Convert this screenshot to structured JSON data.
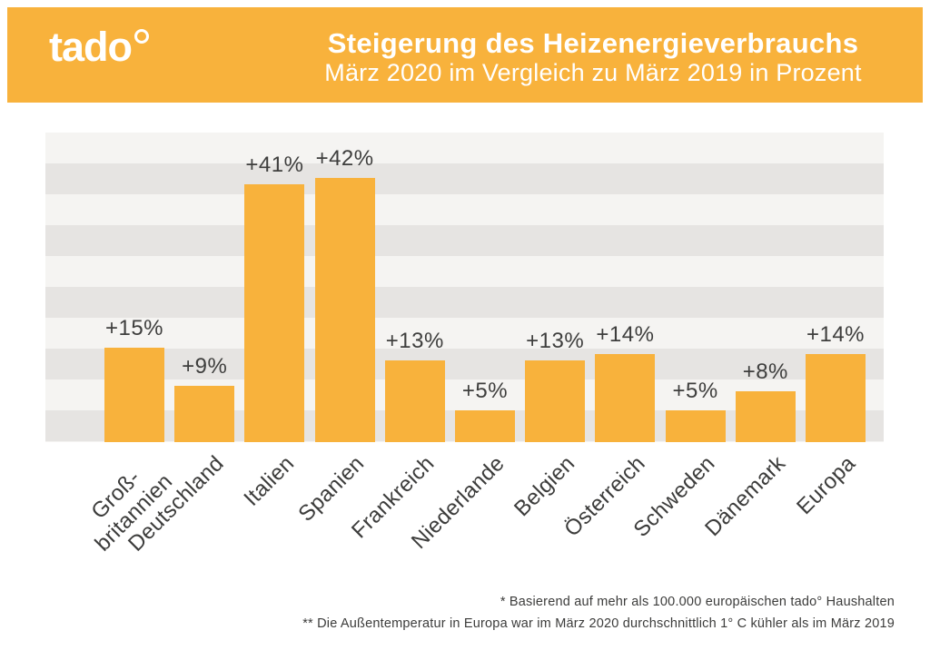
{
  "header": {
    "logo_text": "tado",
    "logo_degree": "°",
    "title": "Steigerung des Heizenergieverbrauchs",
    "subtitle": "März 2020 im Vergleich zu März 2019 in Prozent",
    "background_color": "#F8B23C",
    "text_color": "#FFFFFF"
  },
  "chart_data": {
    "type": "bar",
    "title": "Steigerung des Heizenergieverbrauchs",
    "subtitle": "März 2020 im Vergleich zu März 2019 in Prozent",
    "categories": [
      "Groß-\nbritannien",
      "Deutschland",
      "Italien",
      "Spanien",
      "Frankreich",
      "Niederlande",
      "Belgien",
      "Österreich",
      "Schweden",
      "Dänemark",
      "Europa"
    ],
    "values": [
      15,
      9,
      41,
      42,
      13,
      5,
      13,
      14,
      5,
      8,
      14
    ],
    "value_labels": [
      "+15%",
      "+9%",
      "+41%",
      "+42%",
      "+13%",
      "+5%",
      "+13%",
      "+14%",
      "+5%",
      "+8%",
      "+14%"
    ],
    "unit": "percent",
    "xlabel": "",
    "ylabel": "",
    "ylim": [
      0,
      49
    ],
    "legend": "none",
    "grid": "horizontal-bands",
    "bar_color": "#F8B23C",
    "stripe_light": "#F5F4F2",
    "stripe_dark": "#E6E4E2",
    "label_color": "#3C3C3B"
  },
  "footnotes": [
    "* Basierend auf mehr als 100.000 europäischen tado° Haushalten",
    "** Die Außentemperatur in Europa war im März 2020 durchschnittlich 1° C kühler als im März 2019"
  ]
}
